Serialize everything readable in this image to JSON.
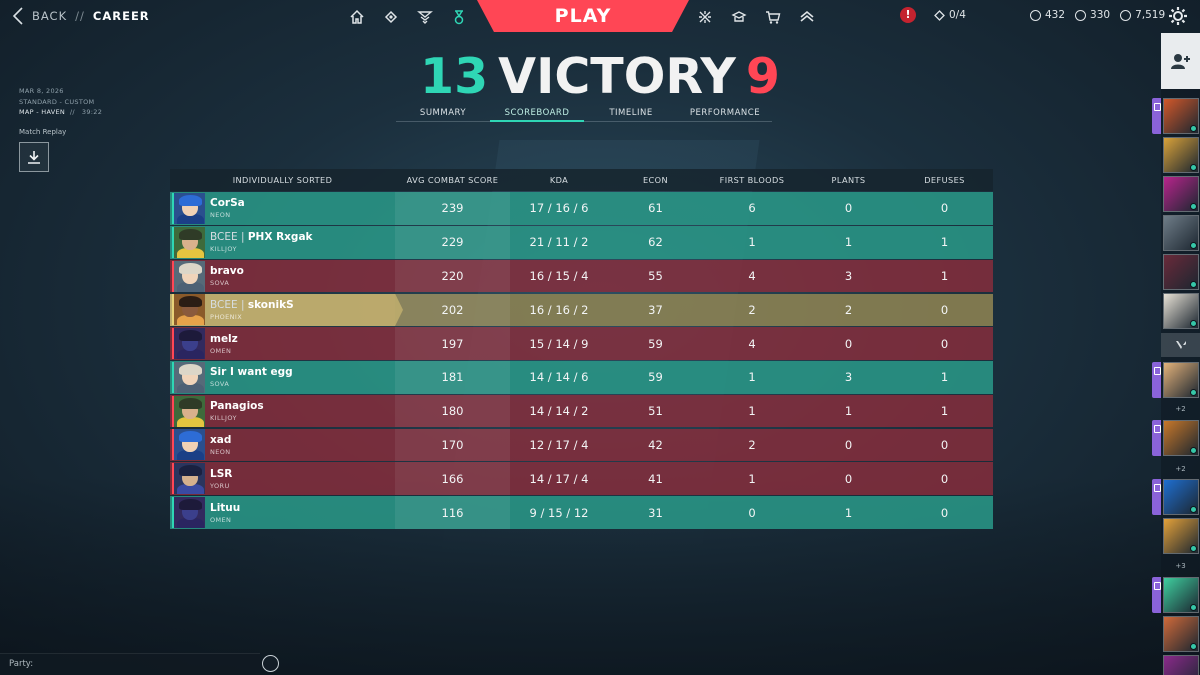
{
  "nav": {
    "back_label": "BACK",
    "separator": "//",
    "section": "CAREER",
    "play_label": "PLAY",
    "alert": "!",
    "quests": "0/4",
    "currencies": [
      "432",
      "330",
      "7,519"
    ]
  },
  "match": {
    "date": "MAR 8, 2026",
    "mode": "STANDARD - CUSTOM",
    "map": "MAP - HAVEN",
    "sep": "//",
    "duration": "39:22",
    "replay_label": "Match Replay"
  },
  "result": {
    "team_score": "13",
    "outcome": "VICTORY",
    "enemy_score": "9"
  },
  "tabs": [
    "SUMMARY",
    "SCOREBOARD",
    "TIMELINE",
    "PERFORMANCE"
  ],
  "active_tab": "SCOREBOARD",
  "scoreboard": {
    "headers": [
      "INDIVIDUALLY SORTED",
      "AVG COMBAT SCORE",
      "KDA",
      "ECON",
      "FIRST BLOODS",
      "PLANTS",
      "DEFUSES"
    ],
    "rows": [
      {
        "tag": "",
        "name": "CorSa",
        "agent": "NEON",
        "acs": "239",
        "kda": "17 / 16 / 6",
        "econ": "61",
        "fb": "6",
        "plants": "0",
        "defuses": "0",
        "team": "win"
      },
      {
        "tag": "BCEE | ",
        "name": "PHX Rxgak",
        "agent": "KILLJOY",
        "acs": "229",
        "kda": "21 / 11 / 2",
        "econ": "62",
        "fb": "1",
        "plants": "1",
        "defuses": "1",
        "team": "win"
      },
      {
        "tag": "",
        "name": "bravo",
        "agent": "SOVA",
        "acs": "220",
        "kda": "16 / 15 / 4",
        "econ": "55",
        "fb": "4",
        "plants": "3",
        "defuses": "1",
        "team": "loss"
      },
      {
        "tag": "BCEE | ",
        "name": "skonikS",
        "agent": "PHOENIX",
        "acs": "202",
        "kda": "16 / 16 / 2",
        "econ": "37",
        "fb": "2",
        "plants": "2",
        "defuses": "0",
        "team": "self"
      },
      {
        "tag": "",
        "name": "melz",
        "agent": "OMEN",
        "acs": "197",
        "kda": "15 / 14 / 9",
        "econ": "59",
        "fb": "4",
        "plants": "0",
        "defuses": "0",
        "team": "loss"
      },
      {
        "tag": "",
        "name": "Sir I want egg",
        "agent": "SOVA",
        "acs": "181",
        "kda": "14 / 14 / 6",
        "econ": "59",
        "fb": "1",
        "plants": "3",
        "defuses": "1",
        "team": "win"
      },
      {
        "tag": "",
        "name": "Panagios",
        "agent": "KILLJOY",
        "acs": "180",
        "kda": "14 / 14 / 2",
        "econ": "51",
        "fb": "1",
        "plants": "1",
        "defuses": "1",
        "team": "loss"
      },
      {
        "tag": "",
        "name": "xad",
        "agent": "NEON",
        "acs": "170",
        "kda": "12 / 17 / 4",
        "econ": "42",
        "fb": "2",
        "plants": "0",
        "defuses": "0",
        "team": "loss"
      },
      {
        "tag": "",
        "name": "LSR",
        "agent": "YORU",
        "acs": "166",
        "kda": "14 / 17 / 4",
        "econ": "41",
        "fb": "1",
        "plants": "0",
        "defuses": "0",
        "team": "loss"
      },
      {
        "tag": "",
        "name": "Lituu",
        "agent": "OMEN",
        "acs": "116",
        "kda": "9 / 15 / 12",
        "econ": "31",
        "fb": "0",
        "plants": "1",
        "defuses": "0",
        "team": "win"
      }
    ]
  },
  "social": {
    "plus_counts": [
      "+2",
      "+2",
      "+3"
    ]
  },
  "party": {
    "label": "Party:"
  },
  "colors": {
    "accent_red": "#ff4655",
    "accent_teal": "#2fd6b5",
    "win_row": "#299686",
    "loss_row": "#8a2d3c",
    "self_row": "#918552"
  }
}
